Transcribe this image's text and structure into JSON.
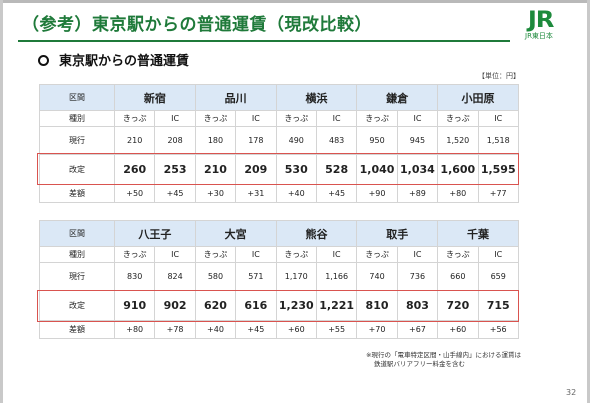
{
  "title": "（参考）東京駅からの普通運賃（現改比較）",
  "logo": {
    "mark": "JR",
    "sub": "JR東日本"
  },
  "section_heading": "東京駅からの普通運賃",
  "unit_note": "【単位：円】",
  "labels": {
    "station": "区間",
    "kind": "種別",
    "current": "現行",
    "revised": "改定",
    "diff": "差額",
    "ticket": "きっぷ",
    "ic": "IC"
  },
  "tables": [
    {
      "stations": [
        {
          "name": "新宿",
          "current": [
            "210",
            "208"
          ],
          "revised": [
            "260",
            "253"
          ],
          "diff": [
            "+50",
            "+45"
          ]
        },
        {
          "name": "品川",
          "current": [
            "180",
            "178"
          ],
          "revised": [
            "210",
            "209"
          ],
          "diff": [
            "+30",
            "+31"
          ]
        },
        {
          "name": "横浜",
          "current": [
            "490",
            "483"
          ],
          "revised": [
            "530",
            "528"
          ],
          "diff": [
            "+40",
            "+45"
          ]
        },
        {
          "name": "鎌倉",
          "current": [
            "950",
            "945"
          ],
          "revised": [
            "1,040",
            "1,034"
          ],
          "diff": [
            "+90",
            "+89"
          ]
        },
        {
          "name": "小田原",
          "current": [
            "1,520",
            "1,518"
          ],
          "revised": [
            "1,600",
            "1,595"
          ],
          "diff": [
            "+80",
            "+77"
          ]
        }
      ]
    },
    {
      "stations": [
        {
          "name": "八王子",
          "current": [
            "830",
            "824"
          ],
          "revised": [
            "910",
            "902"
          ],
          "diff": [
            "+80",
            "+78"
          ]
        },
        {
          "name": "大宮",
          "current": [
            "580",
            "571"
          ],
          "revised": [
            "620",
            "616"
          ],
          "diff": [
            "+40",
            "+45"
          ]
        },
        {
          "name": "熊谷",
          "current": [
            "1,170",
            "1,166"
          ],
          "revised": [
            "1,230",
            "1,221"
          ],
          "diff": [
            "+60",
            "+55"
          ]
        },
        {
          "name": "取手",
          "current": [
            "740",
            "736"
          ],
          "revised": [
            "810",
            "803"
          ],
          "diff": [
            "+70",
            "+67"
          ]
        },
        {
          "name": "千葉",
          "current": [
            "660",
            "659"
          ],
          "revised": [
            "720",
            "715"
          ],
          "diff": [
            "+60",
            "+56"
          ]
        }
      ]
    }
  ],
  "footnote": {
    "line1": "※現行の「電車特定区間・山手線内」における運賃は",
    "line2": "鉄道駅バリアフリー料金を含む"
  },
  "page_number": "32",
  "colors": {
    "accent": "#1f7a3a",
    "header_bg": "#dbe8f6",
    "highlight": "#d9534f"
  }
}
